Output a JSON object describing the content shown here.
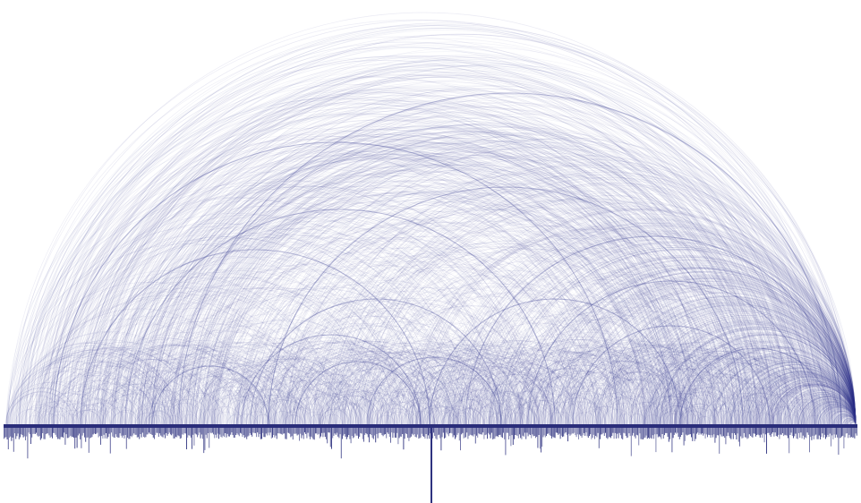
{
  "diagram": {
    "type": "arc-diagram",
    "colors": {
      "arc": "#3a3f93",
      "baseline": "#2a2d7a",
      "bars": "#2f3380",
      "background": "#ffffff"
    },
    "baseline_bars": "present",
    "central_spike": "present"
  }
}
